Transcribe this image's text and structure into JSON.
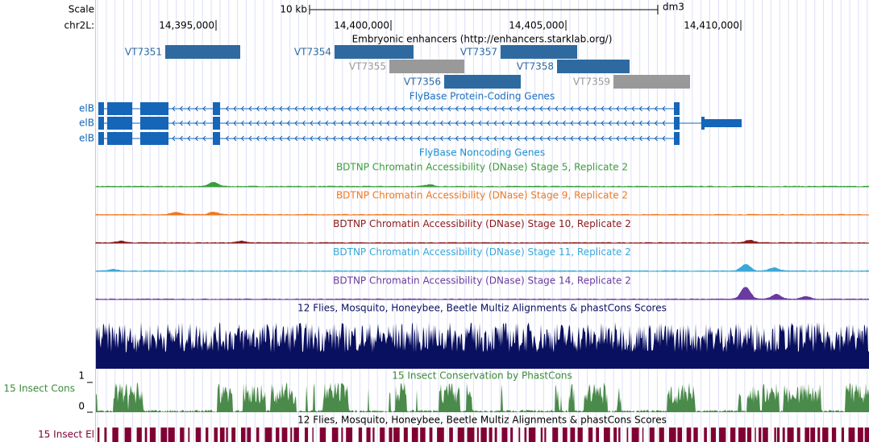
{
  "header": {
    "scale_label": "Scale",
    "scale_size": "10 kb",
    "assembly": "dm3",
    "chrom_label": "chr2L:",
    "positions": [
      "14,395,000",
      "14,400,000",
      "14,405,000",
      "14,410,000"
    ]
  },
  "enhancers": {
    "title": "Embryonic enhancers (http://enhancers.starklab.org/)",
    "items": [
      {
        "label": "VT7351"
      },
      {
        "label": "VT7354"
      },
      {
        "label": "VT7357"
      },
      {
        "label": "VT7355"
      },
      {
        "label": "VT7358"
      },
      {
        "label": "VT7356"
      },
      {
        "label": "VT7359"
      }
    ]
  },
  "genes": {
    "title": "FlyBase Protein-Coding Genes",
    "rows": [
      {
        "label": "elB"
      },
      {
        "label": "elB"
      },
      {
        "label": "elB"
      }
    ]
  },
  "noncoding": {
    "title": "FlyBase Noncoding Genes"
  },
  "dnase": [
    {
      "title": "BDTNP Chromatin Accessibility (DNase) Stage 5, Replicate 2"
    },
    {
      "title": "BDTNP Chromatin Accessibility (DNase) Stage 9, Replicate 2"
    },
    {
      "title": "BDTNP Chromatin Accessibility (DNase) Stage 10, Replicate 2"
    },
    {
      "title": "BDTNP Chromatin Accessibility (DNase) Stage 11, Replicate 2"
    },
    {
      "title": "BDTNP Chromatin Accessibility (DNase) Stage 14, Replicate 2"
    }
  ],
  "multiz": {
    "title": "12 Flies, Mosquito, Honeybee, Beetle Multiz Alignments & phastCons Scores"
  },
  "phastcons": {
    "title": "15 Insect Conservation by PhastCons",
    "label": "15 Insect Cons",
    "max": "1",
    "min": "0"
  },
  "elements": {
    "title": "12 Flies, Mosquito, Honeybee, Beetle Multiz Alignments & phastCons Scores",
    "label": "15 Insect El"
  }
}
